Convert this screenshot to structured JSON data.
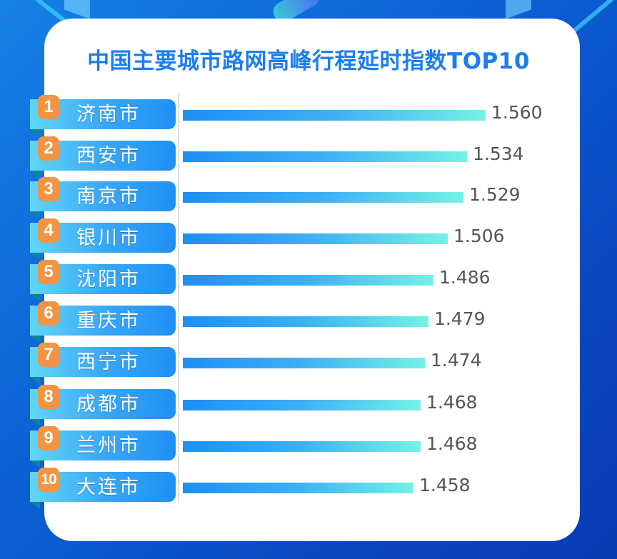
{
  "title": "中国主要城市路网高峰行程延时指数TOP10",
  "colors": {
    "title": "#1b7ef0",
    "rank_badge": "#f29443",
    "bar_start": "#1e8ff5",
    "bar_end": "#76f1e6",
    "value_text": "#555555"
  },
  "rows": [
    {
      "rank": "1",
      "city": "济南市",
      "value": "1.560"
    },
    {
      "rank": "2",
      "city": "西安市",
      "value": "1.534"
    },
    {
      "rank": "3",
      "city": "南京市",
      "value": "1.529"
    },
    {
      "rank": "4",
      "city": "银川市",
      "value": "1.506"
    },
    {
      "rank": "5",
      "city": "沈阳市",
      "value": "1.486"
    },
    {
      "rank": "6",
      "city": "重庆市",
      "value": "1.479"
    },
    {
      "rank": "7",
      "city": "西宁市",
      "value": "1.474"
    },
    {
      "rank": "8",
      "city": "成都市",
      "value": "1.468"
    },
    {
      "rank": "9",
      "city": "兰州市",
      "value": "1.468"
    },
    {
      "rank": "10",
      "city": "大连市",
      "value": "1.458"
    }
  ],
  "chart_data": {
    "type": "bar",
    "orientation": "horizontal",
    "title": "中国主要城市路网高峰行程延时指数TOP10",
    "categories": [
      "济南市",
      "西安市",
      "南京市",
      "银川市",
      "沈阳市",
      "重庆市",
      "西宁市",
      "成都市",
      "兰州市",
      "大连市"
    ],
    "values": [
      1.56,
      1.534,
      1.529,
      1.506,
      1.486,
      1.479,
      1.474,
      1.468,
      1.468,
      1.458
    ],
    "ranks": [
      1,
      2,
      3,
      4,
      5,
      6,
      7,
      8,
      9,
      10
    ],
    "xlabel": "",
    "ylabel": "",
    "grid": false,
    "legend": "none",
    "data_labels": true
  }
}
